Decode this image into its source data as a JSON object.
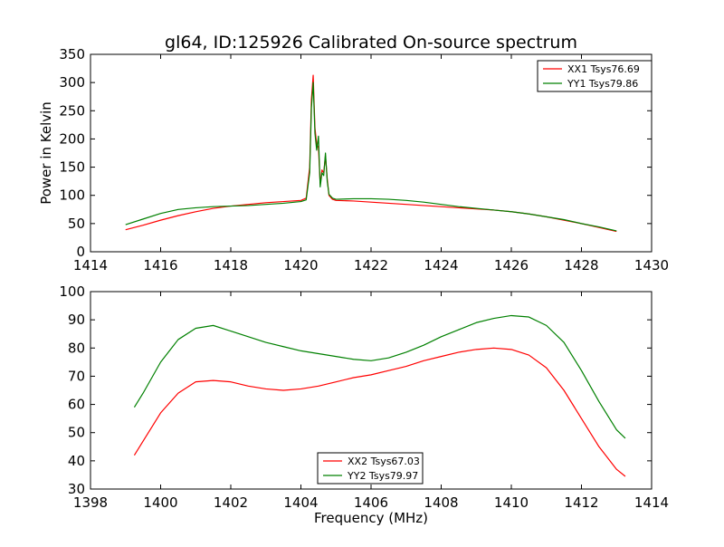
{
  "figure": {
    "title": "gl64, ID:125926 Calibrated On-source spectrum"
  },
  "chart_data": [
    {
      "type": "line",
      "title": "gl64, ID:125926 Calibrated On-source spectrum",
      "xlabel": "",
      "ylabel": "Power in Kelvin",
      "xlim": [
        1414,
        1430
      ],
      "ylim": [
        0,
        350
      ],
      "xticks": [
        "1414",
        "1416",
        "1418",
        "1420",
        "1422",
        "1424",
        "1426",
        "1428",
        "1430"
      ],
      "yticks": [
        "0",
        "50",
        "100",
        "150",
        "200",
        "250",
        "300",
        "350"
      ],
      "legend_position": "top-right",
      "grid": false,
      "series": [
        {
          "name": "XX1 Tsys76.69",
          "color": "#ff0000",
          "x": [
            1415.0,
            1415.5,
            1416.0,
            1416.5,
            1417.0,
            1417.5,
            1418.0,
            1418.5,
            1419.0,
            1419.5,
            1420.0,
            1420.15,
            1420.25,
            1420.3,
            1420.35,
            1420.4,
            1420.45,
            1420.5,
            1420.55,
            1420.6,
            1420.65,
            1420.7,
            1420.75,
            1420.8,
            1420.9,
            1421.0,
            1421.5,
            1422.0,
            1422.5,
            1423.0,
            1423.5,
            1424.0,
            1424.5,
            1425.0,
            1425.5,
            1426.0,
            1426.5,
            1427.0,
            1427.5,
            1428.0,
            1428.5,
            1429.0
          ],
          "y": [
            39,
            47,
            56,
            64,
            71,
            77,
            81,
            84,
            87,
            89,
            91,
            95,
            150,
            270,
            313,
            220,
            190,
            185,
            120,
            145,
            140,
            170,
            130,
            100,
            93,
            91,
            90,
            88,
            86,
            84,
            82,
            80,
            78,
            76,
            74,
            71,
            67,
            62,
            56,
            50,
            43,
            36
          ]
        },
        {
          "name": "YY1 Tsys79.86",
          "color": "#008000",
          "x": [
            1415.0,
            1415.5,
            1416.0,
            1416.5,
            1417.0,
            1417.5,
            1418.0,
            1418.5,
            1419.0,
            1419.5,
            1420.0,
            1420.15,
            1420.25,
            1420.3,
            1420.35,
            1420.4,
            1420.45,
            1420.5,
            1420.55,
            1420.6,
            1420.65,
            1420.7,
            1420.75,
            1420.8,
            1420.9,
            1421.0,
            1421.5,
            1422.0,
            1422.5,
            1423.0,
            1423.5,
            1424.0,
            1424.5,
            1425.0,
            1425.5,
            1426.0,
            1426.5,
            1427.0,
            1427.5,
            1428.0,
            1428.5,
            1429.0
          ],
          "y": [
            48,
            58,
            68,
            75,
            78,
            80,
            81,
            82,
            84,
            86,
            89,
            92,
            140,
            255,
            300,
            210,
            180,
            205,
            115,
            140,
            135,
            175,
            125,
            102,
            95,
            93,
            94,
            94,
            93,
            91,
            88,
            84,
            80,
            77,
            74,
            71,
            67,
            62,
            57,
            50,
            44,
            37
          ]
        }
      ]
    },
    {
      "type": "line",
      "title": "",
      "xlabel": "Frequency (MHz)",
      "ylabel": "",
      "xlim": [
        1398,
        1414
      ],
      "ylim": [
        30,
        100
      ],
      "xticks": [
        "1398",
        "1400",
        "1402",
        "1404",
        "1406",
        "1408",
        "1410",
        "1412",
        "1414"
      ],
      "yticks": [
        "30",
        "40",
        "50",
        "60",
        "70",
        "80",
        "90",
        "100"
      ],
      "legend_position": "lower-center",
      "grid": false,
      "series": [
        {
          "name": "XX2 Tsys67.03",
          "color": "#ff0000",
          "x": [
            1399.25,
            1399.5,
            1400.0,
            1400.5,
            1401.0,
            1401.5,
            1402.0,
            1402.5,
            1403.0,
            1403.5,
            1404.0,
            1404.5,
            1405.0,
            1405.5,
            1406.0,
            1406.5,
            1407.0,
            1407.5,
            1408.0,
            1408.5,
            1409.0,
            1409.5,
            1410.0,
            1410.5,
            1411.0,
            1411.5,
            1412.0,
            1412.5,
            1413.0,
            1413.25
          ],
          "y": [
            42,
            47,
            57,
            64,
            68,
            68.5,
            68,
            66.5,
            65.5,
            65,
            65.5,
            66.5,
            68,
            69.5,
            70.5,
            72,
            73.5,
            75.5,
            77,
            78.5,
            79.5,
            80,
            79.5,
            77.5,
            73,
            65,
            55,
            45,
            37,
            34.5
          ]
        },
        {
          "name": "YY2 Tsys79.97",
          "color": "#008000",
          "x": [
            1399.25,
            1399.5,
            1400.0,
            1400.5,
            1401.0,
            1401.5,
            1402.0,
            1402.5,
            1403.0,
            1403.5,
            1404.0,
            1404.5,
            1405.0,
            1405.5,
            1406.0,
            1406.5,
            1407.0,
            1407.5,
            1408.0,
            1408.5,
            1409.0,
            1409.5,
            1410.0,
            1410.5,
            1411.0,
            1411.5,
            1412.0,
            1412.5,
            1413.0,
            1413.25
          ],
          "y": [
            59,
            64,
            75,
            83,
            87,
            88,
            86,
            84,
            82,
            80.5,
            79,
            78,
            77,
            76,
            75.5,
            76.5,
            78.5,
            81,
            84,
            86.5,
            89,
            90.5,
            91.5,
            91,
            88,
            82,
            72,
            61,
            51,
            48
          ]
        }
      ]
    }
  ]
}
